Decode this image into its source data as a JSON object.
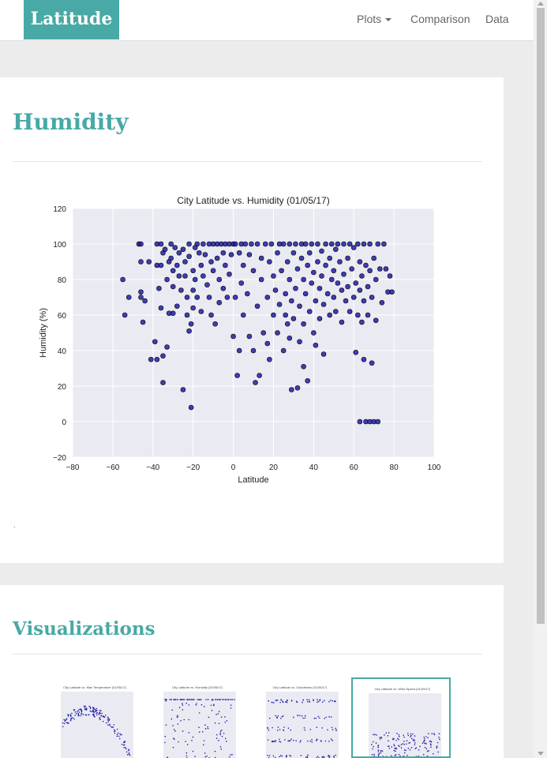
{
  "nav": {
    "brand": "Latitude",
    "plots_label": "Plots",
    "comparison_label": "Comparison",
    "data_label": "Data"
  },
  "main": {
    "title": "Humidity",
    "note": "."
  },
  "visualizations": {
    "title": "Visualizations"
  },
  "colors": {
    "accent": "#48a9a6",
    "plot_bg": "#eaeaf2",
    "point": "#1f1fa8"
  },
  "chart_data": {
    "type": "scatter",
    "title": "City Latitude vs. Humidity (01/05/17)",
    "xlabel": "Latitude",
    "ylabel": "Humidity (%)",
    "xlim": [
      -80,
      100
    ],
    "ylim": [
      -20,
      120
    ],
    "xticks": [
      -80,
      -60,
      -40,
      -20,
      0,
      20,
      40,
      60,
      80,
      100
    ],
    "yticks": [
      -20,
      0,
      20,
      40,
      60,
      80,
      100,
      120
    ],
    "grid": true,
    "points": [
      [
        -55,
        80
      ],
      [
        -54,
        60
      ],
      [
        -52,
        70
      ],
      [
        -47,
        100
      ],
      [
        -46,
        100
      ],
      [
        -46,
        90
      ],
      [
        -46,
        73
      ],
      [
        -46,
        70
      ],
      [
        -45,
        56
      ],
      [
        -44,
        68
      ],
      [
        -42,
        90
      ],
      [
        -41,
        35
      ],
      [
        -39,
        45
      ],
      [
        -38,
        100
      ],
      [
        -38,
        88
      ],
      [
        -38,
        35
      ],
      [
        -37,
        75
      ],
      [
        -36,
        100
      ],
      [
        -36,
        88
      ],
      [
        -36,
        64
      ],
      [
        -35,
        95
      ],
      [
        -35,
        37
      ],
      [
        -35,
        22
      ],
      [
        -34,
        97
      ],
      [
        -33,
        80
      ],
      [
        -33,
        42
      ],
      [
        -32,
        90
      ],
      [
        -32,
        61
      ],
      [
        -31,
        100
      ],
      [
        -31,
        92
      ],
      [
        -30,
        85
      ],
      [
        -30,
        76
      ],
      [
        -30,
        61
      ],
      [
        -29,
        98
      ],
      [
        -28,
        88
      ],
      [
        -28,
        65
      ],
      [
        -27,
        95
      ],
      [
        -27,
        82
      ],
      [
        -26,
        74
      ],
      [
        -25,
        18
      ],
      [
        -25,
        97
      ],
      [
        -24,
        90
      ],
      [
        -24,
        82
      ],
      [
        -23,
        70
      ],
      [
        -23,
        60
      ],
      [
        -22,
        100
      ],
      [
        -22,
        93
      ],
      [
        -22,
        51
      ],
      [
        -21,
        8
      ],
      [
        -21,
        55
      ],
      [
        -20,
        85
      ],
      [
        -20,
        74
      ],
      [
        -20,
        64
      ],
      [
        -19,
        98
      ],
      [
        -19,
        80
      ],
      [
        -18,
        100
      ],
      [
        -18,
        70
      ],
      [
        -17,
        95
      ],
      [
        -16,
        88
      ],
      [
        -16,
        62
      ],
      [
        -15,
        100
      ],
      [
        -15,
        82
      ],
      [
        -14,
        94
      ],
      [
        -13,
        77
      ],
      [
        -12,
        100
      ],
      [
        -12,
        70
      ],
      [
        -11,
        90
      ],
      [
        -11,
        60
      ],
      [
        -10,
        100
      ],
      [
        -10,
        85
      ],
      [
        -9,
        55
      ],
      [
        -8,
        100
      ],
      [
        -8,
        92
      ],
      [
        -7,
        80
      ],
      [
        -7,
        67
      ],
      [
        -6,
        100
      ],
      [
        -5,
        95
      ],
      [
        -5,
        75
      ],
      [
        -4,
        100
      ],
      [
        -4,
        88
      ],
      [
        -3,
        70
      ],
      [
        -2,
        100
      ],
      [
        -2,
        83
      ],
      [
        -1,
        94
      ],
      [
        0,
        100
      ],
      [
        0,
        48
      ],
      [
        1,
        100
      ],
      [
        1,
        70
      ],
      [
        2,
        26
      ],
      [
        3,
        95
      ],
      [
        3,
        40
      ],
      [
        4,
        100
      ],
      [
        4,
        78
      ],
      [
        5,
        88
      ],
      [
        5,
        60
      ],
      [
        6,
        100
      ],
      [
        7,
        72
      ],
      [
        8,
        94
      ],
      [
        8,
        48
      ],
      [
        9,
        100
      ],
      [
        10,
        85
      ],
      [
        10,
        40
      ],
      [
        11,
        22
      ],
      [
        12,
        100
      ],
      [
        12,
        65
      ],
      [
        13,
        26
      ],
      [
        14,
        92
      ],
      [
        14,
        80
      ],
      [
        15,
        50
      ],
      [
        16,
        100
      ],
      [
        17,
        70
      ],
      [
        17,
        44
      ],
      [
        18,
        90
      ],
      [
        18,
        35
      ],
      [
        19,
        100
      ],
      [
        20,
        82
      ],
      [
        20,
        60
      ],
      [
        21,
        74
      ],
      [
        22,
        95
      ],
      [
        22,
        50
      ],
      [
        23,
        100
      ],
      [
        23,
        66
      ],
      [
        24,
        85
      ],
      [
        25,
        40
      ],
      [
        25,
        100
      ],
      [
        26,
        72
      ],
      [
        26,
        60
      ],
      [
        27,
        90
      ],
      [
        27,
        55
      ],
      [
        28,
        100
      ],
      [
        28,
        80
      ],
      [
        28,
        47
      ],
      [
        29,
        68
      ],
      [
        29,
        18
      ],
      [
        30,
        95
      ],
      [
        30,
        58
      ],
      [
        31,
        100
      ],
      [
        31,
        75
      ],
      [
        32,
        86
      ],
      [
        32,
        19
      ],
      [
        33,
        65
      ],
      [
        33,
        45
      ],
      [
        34,
        100
      ],
      [
        34,
        92
      ],
      [
        35,
        80
      ],
      [
        35,
        55
      ],
      [
        35,
        31
      ],
      [
        36,
        100
      ],
      [
        36,
        72
      ],
      [
        37,
        23
      ],
      [
        37,
        88
      ],
      [
        38,
        62
      ],
      [
        38,
        95
      ],
      [
        39,
        100
      ],
      [
        39,
        78
      ],
      [
        40,
        50
      ],
      [
        40,
        84
      ],
      [
        41,
        68
      ],
      [
        41,
        43
      ],
      [
        42,
        100
      ],
      [
        42,
        90
      ],
      [
        43,
        75
      ],
      [
        43,
        58
      ],
      [
        44,
        96
      ],
      [
        44,
        82
      ],
      [
        45,
        66
      ],
      [
        45,
        38
      ],
      [
        46,
        100
      ],
      [
        46,
        88
      ],
      [
        47,
        72
      ],
      [
        48,
        92
      ],
      [
        48,
        60
      ],
      [
        49,
        100
      ],
      [
        49,
        80
      ],
      [
        50,
        85
      ],
      [
        50,
        70
      ],
      [
        51,
        97
      ],
      [
        51,
        62
      ],
      [
        52,
        100
      ],
      [
        52,
        78
      ],
      [
        53,
        90
      ],
      [
        54,
        74
      ],
      [
        54,
        56
      ],
      [
        55,
        100
      ],
      [
        55,
        83
      ],
      [
        56,
        68
      ],
      [
        57,
        92
      ],
      [
        57,
        76
      ],
      [
        58,
        100
      ],
      [
        58,
        62
      ],
      [
        59,
        86
      ],
      [
        60,
        70
      ],
      [
        60,
        98
      ],
      [
        61,
        78
      ],
      [
        61,
        39
      ],
      [
        62,
        100
      ],
      [
        62,
        60
      ],
      [
        63,
        90
      ],
      [
        63,
        74
      ],
      [
        63,
        0
      ],
      [
        64,
        82
      ],
      [
        64,
        56
      ],
      [
        65,
        100
      ],
      [
        65,
        68
      ],
      [
        65,
        35
      ],
      [
        66,
        88
      ],
      [
        66,
        0
      ],
      [
        67,
        76
      ],
      [
        67,
        60
      ],
      [
        68,
        100
      ],
      [
        68,
        85
      ],
      [
        68,
        0
      ],
      [
        69,
        70
      ],
      [
        69,
        33
      ],
      [
        70,
        92
      ],
      [
        70,
        0
      ],
      [
        71,
        80
      ],
      [
        71,
        57
      ],
      [
        72,
        100
      ],
      [
        72,
        0
      ],
      [
        73,
        86
      ],
      [
        74,
        67
      ],
      [
        75,
        100
      ],
      [
        76,
        86
      ],
      [
        77,
        73
      ],
      [
        78,
        82
      ],
      [
        79,
        73
      ]
    ]
  },
  "thumbnails": [
    {
      "title": "City Latitude vs. Max Temperature (01/05/17)",
      "label": "thumb-temperature"
    },
    {
      "title": "City Latitude vs. Humidity (01/05/17)",
      "label": "thumb-humidity"
    },
    {
      "title": "City Latitude vs. Cloudiness (01/05/17)",
      "label": "thumb-cloudiness"
    },
    {
      "title": "City Latitude vs. Wind Speed (01/05/17)",
      "label": "thumb-wind-speed"
    }
  ]
}
